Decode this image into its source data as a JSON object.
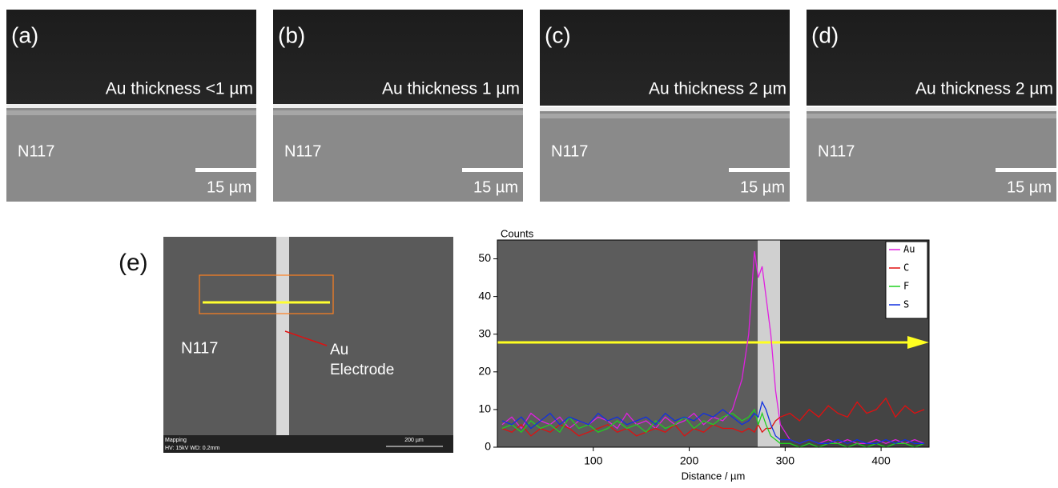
{
  "panels": [
    {
      "label": "(a)",
      "caption": "Au thickness <1 µm",
      "sample": "N117",
      "scale": "15 µm"
    },
    {
      "label": "(b)",
      "caption": "Au thickness 1 µm",
      "sample": "N117",
      "scale": "15 µm"
    },
    {
      "label": "(c)",
      "caption": "Au thickness 2 µm",
      "sample": "N117",
      "scale": "15 µm"
    },
    {
      "label": "(d)",
      "caption": "Au thickness 2 µm",
      "sample": "N117",
      "scale": "15 µm"
    }
  ],
  "panel_e": {
    "label": "(e)",
    "sample": "N117",
    "arrow_label_1": "Au",
    "arrow_label_2": "Electrode",
    "info_1": "Mapping",
    "info_2": "HV: 15kV   WD: 0.2mm",
    "scale": "200 µm"
  },
  "chart_data": {
    "type": "line",
    "ylabel": "Counts",
    "xlabel": "Distance / µm",
    "x": [
      5,
      15,
      25,
      35,
      45,
      55,
      65,
      75,
      85,
      95,
      105,
      115,
      125,
      135,
      145,
      155,
      165,
      175,
      185,
      195,
      205,
      215,
      225,
      235,
      245,
      255,
      262,
      268,
      272,
      276,
      280,
      285,
      290,
      295,
      305,
      315,
      325,
      335,
      345,
      355,
      365,
      375,
      385,
      395,
      405,
      415,
      425,
      435,
      445
    ],
    "series": [
      {
        "name": "Au",
        "color": "#e020e0",
        "values": [
          6,
          8,
          5,
          9,
          7,
          6,
          8,
          5,
          7,
          6,
          8,
          7,
          5,
          9,
          6,
          7,
          5,
          8,
          6,
          7,
          9,
          6,
          8,
          7,
          10,
          18,
          30,
          52,
          45,
          48,
          40,
          30,
          15,
          6,
          2,
          1,
          2,
          1,
          2,
          1,
          2,
          1,
          1,
          2,
          1,
          2,
          1,
          2,
          1
        ]
      },
      {
        "name": "C",
        "color": "#e01010",
        "values": [
          5,
          4,
          6,
          3,
          5,
          4,
          6,
          5,
          3,
          4,
          5,
          6,
          4,
          5,
          3,
          4,
          5,
          4,
          6,
          3,
          5,
          4,
          6,
          5,
          5,
          4,
          5,
          4,
          6,
          4,
          5,
          5,
          7,
          8,
          9,
          7,
          10,
          8,
          11,
          9,
          8,
          12,
          9,
          10,
          13,
          8,
          11,
          9,
          10
        ]
      },
      {
        "name": "F",
        "color": "#20d020",
        "values": [
          5,
          6,
          4,
          7,
          5,
          6,
          4,
          8,
          5,
          6,
          4,
          5,
          7,
          5,
          6,
          4,
          7,
          5,
          6,
          8,
          5,
          7,
          6,
          8,
          9,
          7,
          8,
          10,
          6,
          9,
          6,
          3,
          2,
          1,
          1,
          0,
          1,
          0,
          1,
          1,
          0,
          1,
          0,
          1,
          0,
          1,
          1,
          0,
          1
        ]
      },
      {
        "name": "S",
        "color": "#1030e0",
        "values": [
          7,
          6,
          8,
          5,
          7,
          9,
          6,
          8,
          7,
          6,
          9,
          7,
          8,
          6,
          7,
          8,
          6,
          9,
          7,
          8,
          7,
          9,
          8,
          10,
          8,
          6,
          7,
          9,
          8,
          12,
          10,
          6,
          3,
          2,
          2,
          1,
          2,
          1,
          1,
          2,
          1,
          2,
          1,
          1,
          2,
          1,
          2,
          1,
          1
        ]
      }
    ],
    "xlim": [
      0,
      450
    ],
    "ylim": [
      0,
      55
    ],
    "xticks": [
      100,
      200,
      300,
      400
    ],
    "yticks": [
      0,
      10,
      20,
      30,
      40,
      50
    ]
  }
}
